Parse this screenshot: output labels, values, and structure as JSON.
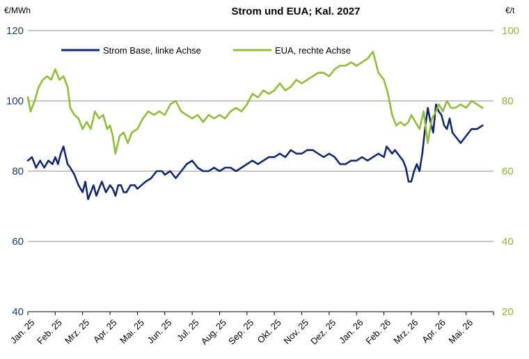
{
  "chart_data": {
    "type": "line",
    "title": "Strom und EUA; Kal. 2027",
    "left_unit": "€/MWh",
    "right_unit": "€/t",
    "ylim_left": [
      40,
      120
    ],
    "ylim_right": [
      20,
      100
    ],
    "yticks_left": [
      "40",
      "60",
      "80",
      "100",
      "120"
    ],
    "yticks_right": [
      "20",
      "40",
      "60",
      "80",
      "100"
    ],
    "x_labels": [
      "Jan. 25",
      "Feb. 25",
      "Mrz. 25",
      "Apr. 25",
      "Mai. 25",
      "Jun. 25",
      "Jul. 25",
      "Aug. 25",
      "Sep. 25",
      "Okt. 25",
      "Nov. 25",
      "Dez. 25",
      "Jan. 26",
      "Feb. 26",
      "Mrz. 26",
      "Apr. 26",
      "Mai. 26"
    ],
    "x_range_months": [
      0,
      17
    ],
    "grid": true,
    "legend_position": "top",
    "series": [
      {
        "name": "Strom Base, linke Achse",
        "axis": "left",
        "color": "#14296b",
        "x": [
          0.0,
          0.15,
          0.3,
          0.45,
          0.6,
          0.75,
          0.9,
          1.0,
          1.1,
          1.2,
          1.3,
          1.45,
          1.55,
          1.7,
          1.85,
          2.0,
          2.1,
          2.2,
          2.3,
          2.4,
          2.5,
          2.6,
          2.7,
          2.85,
          3.0,
          3.1,
          3.2,
          3.3,
          3.4,
          3.5,
          3.6,
          3.75,
          3.9,
          4.0,
          4.15,
          4.3,
          4.5,
          4.7,
          4.9,
          5.0,
          5.2,
          5.4,
          5.6,
          5.8,
          6.0,
          6.2,
          6.4,
          6.6,
          6.8,
          7.0,
          7.2,
          7.4,
          7.6,
          7.8,
          8.0,
          8.2,
          8.4,
          8.6,
          8.8,
          9.0,
          9.2,
          9.4,
          9.6,
          9.8,
          10.0,
          10.2,
          10.4,
          10.6,
          10.8,
          11.0,
          11.2,
          11.4,
          11.6,
          11.8,
          12.0,
          12.2,
          12.4,
          12.6,
          12.8,
          13.0,
          13.1,
          13.2,
          13.3,
          13.4,
          13.5,
          13.6,
          13.7,
          13.8,
          13.9,
          14.0,
          14.1,
          14.2,
          14.3,
          14.4,
          14.5,
          14.6,
          14.7,
          14.8,
          14.9,
          15.0,
          15.1,
          15.2,
          15.3,
          15.4,
          15.5,
          15.6,
          15.8,
          16.0,
          16.2,
          16.4,
          16.6
        ],
        "y": [
          83,
          84,
          81,
          83,
          81,
          83,
          82,
          84,
          82,
          85,
          87,
          82,
          81,
          79,
          76,
          74,
          77,
          72,
          74,
          76,
          73,
          75,
          77,
          74,
          76,
          75,
          73,
          76,
          76,
          74,
          74,
          76,
          76,
          75,
          76,
          77,
          78,
          80,
          80,
          79,
          80,
          78,
          80,
          82,
          83,
          81,
          80,
          80,
          81,
          80,
          81,
          81,
          80,
          81,
          82,
          83,
          82,
          83,
          84,
          84,
          85,
          84,
          86,
          85,
          85,
          86,
          86,
          85,
          84,
          85,
          84,
          82,
          82,
          83,
          83,
          84,
          83,
          84,
          85,
          84,
          87,
          86,
          85,
          86,
          85,
          84,
          83,
          81,
          77,
          77,
          80,
          82,
          80,
          85,
          92,
          98,
          94,
          91,
          99,
          97,
          96,
          93,
          92,
          95,
          91,
          90,
          88,
          90,
          92,
          92,
          93
        ]
      },
      {
        "name": "EUA, rechte Achse",
        "axis": "right",
        "color": "#92bc3d",
        "x": [
          0.0,
          0.1,
          0.25,
          0.4,
          0.55,
          0.7,
          0.85,
          1.0,
          1.15,
          1.3,
          1.45,
          1.55,
          1.7,
          1.85,
          2.0,
          2.15,
          2.3,
          2.45,
          2.6,
          2.75,
          2.9,
          3.0,
          3.1,
          3.2,
          3.35,
          3.5,
          3.65,
          3.8,
          4.0,
          4.2,
          4.4,
          4.6,
          4.8,
          5.0,
          5.2,
          5.4,
          5.6,
          5.8,
          6.0,
          6.2,
          6.4,
          6.6,
          6.8,
          7.0,
          7.2,
          7.4,
          7.6,
          7.8,
          8.0,
          8.2,
          8.4,
          8.6,
          8.8,
          9.0,
          9.2,
          9.4,
          9.6,
          9.8,
          10.0,
          10.2,
          10.4,
          10.6,
          10.8,
          11.0,
          11.2,
          11.4,
          11.6,
          11.8,
          12.0,
          12.2,
          12.4,
          12.6,
          12.8,
          13.0,
          13.15,
          13.3,
          13.45,
          13.6,
          13.75,
          13.9,
          14.0,
          14.15,
          14.3,
          14.45,
          14.6,
          14.75,
          14.9,
          15.0,
          15.15,
          15.3,
          15.45,
          15.6,
          15.8,
          16.0,
          16.2,
          16.4,
          16.6
        ],
        "y": [
          81,
          77,
          80,
          84,
          86,
          87,
          86,
          89,
          86,
          87,
          84,
          78,
          76,
          75,
          72,
          74,
          72,
          77,
          75,
          76,
          72,
          73,
          70,
          65,
          70,
          71,
          68,
          71,
          72,
          75,
          77,
          76,
          77,
          76,
          79,
          80,
          77,
          76,
          75,
          76,
          74,
          76,
          75,
          76,
          75,
          77,
          78,
          77,
          79,
          82,
          81,
          83,
          82,
          83,
          85,
          83,
          84,
          86,
          85,
          86,
          87,
          88,
          88,
          87,
          89,
          90,
          90,
          91,
          90,
          91,
          92,
          94,
          88,
          86,
          82,
          76,
          73,
          74,
          73,
          74,
          76,
          74,
          72,
          77,
          68,
          75,
          77,
          79,
          77,
          80,
          78,
          78,
          79,
          78,
          80,
          79,
          78
        ]
      }
    ]
  }
}
